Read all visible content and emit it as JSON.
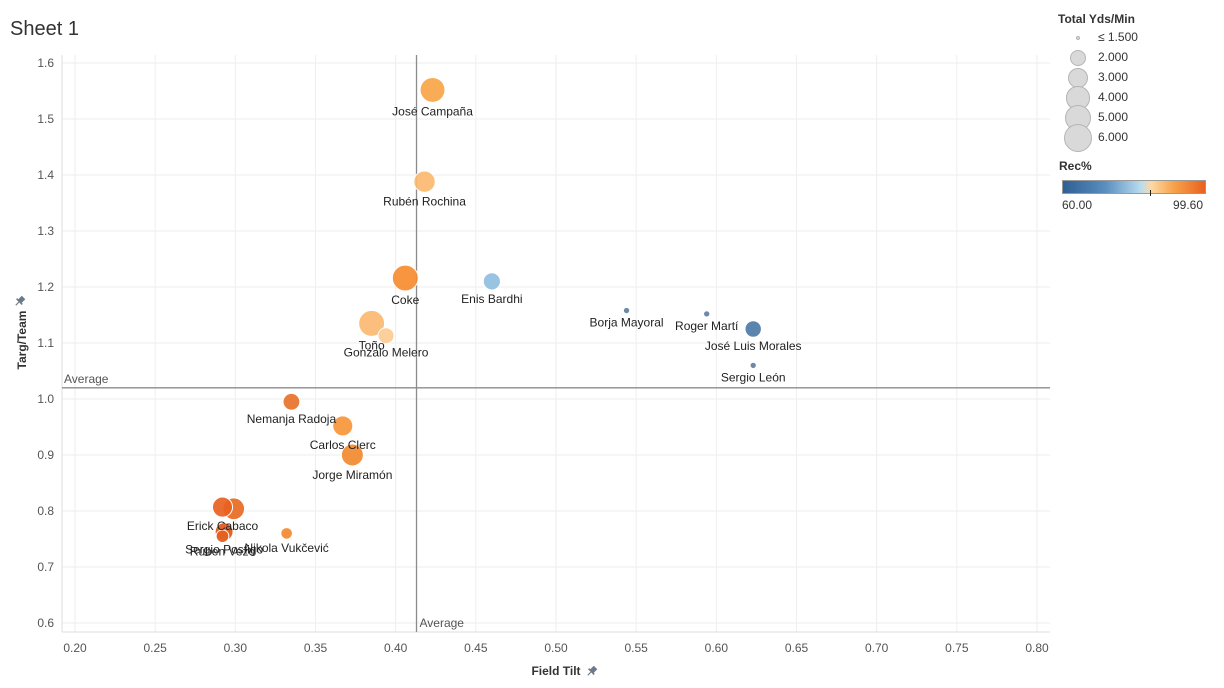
{
  "sheet": {
    "title": "Sheet 1"
  },
  "legend": {
    "size_title": "Total Yds/Min",
    "size_items": [
      {
        "label": "≤ 1.500",
        "value": 1.5
      },
      {
        "label": "2.000",
        "value": 2.0
      },
      {
        "label": "3.000",
        "value": 3.0
      },
      {
        "label": "4.000",
        "value": 4.0
      },
      {
        "label": "5.000",
        "value": 5.0
      },
      {
        "label": "6.000",
        "value": 6.0
      }
    ],
    "color_title": "Rec%",
    "color_min": "60.00",
    "color_max": "99.60",
    "colors": {
      "low": "#2f5f93",
      "mid": "#b9dcee",
      "high": "#e8611f"
    }
  },
  "chart_data": {
    "type": "scatter",
    "xlabel": "Field Tilt",
    "ylabel": "Targ/Team",
    "xlim": [
      0.2,
      0.8
    ],
    "ylim": [
      0.6,
      1.6
    ],
    "x_ticks": [
      "0.20",
      "0.25",
      "0.30",
      "0.35",
      "0.40",
      "0.45",
      "0.50",
      "0.55",
      "0.60",
      "0.65",
      "0.70",
      "0.75",
      "0.80"
    ],
    "y_ticks": [
      "0.6",
      "0.7",
      "0.8",
      "0.9",
      "1.0",
      "1.1",
      "1.2",
      "1.3",
      "1.4",
      "1.5",
      "1.6"
    ],
    "grid": true,
    "reference_lines": [
      {
        "axis": "x",
        "value": 0.413,
        "label": "Average"
      },
      {
        "axis": "y",
        "value": 1.02,
        "label": "Average"
      }
    ],
    "points": [
      {
        "name": "José Campaña",
        "x": 0.423,
        "y": 1.552,
        "size": 4.6,
        "color": "#f9a548"
      },
      {
        "name": "Rubén Rochina",
        "x": 0.418,
        "y": 1.388,
        "size": 3.4,
        "color": "#fbb870"
      },
      {
        "name": "Coke",
        "x": 0.406,
        "y": 1.216,
        "size": 5.0,
        "color": "#f68c30"
      },
      {
        "name": "Enis Bardhi",
        "x": 0.46,
        "y": 1.21,
        "size": 2.2,
        "color": "#8fbfe0"
      },
      {
        "name": "Toño",
        "x": 0.385,
        "y": 1.135,
        "size": 5.0,
        "color": "#fbb971"
      },
      {
        "name": "Gonzalo Melero",
        "x": 0.394,
        "y": 1.113,
        "size": 1.9,
        "color": "#fccb93"
      },
      {
        "name": "Borja Mayoral",
        "x": 0.544,
        "y": 1.158,
        "size": 0.3,
        "color": "#5f7f9f"
      },
      {
        "name": "Roger Martí",
        "x": 0.594,
        "y": 1.152,
        "size": 0.3,
        "color": "#5f7f9f"
      },
      {
        "name": "José Luis Morales",
        "x": 0.623,
        "y": 1.125,
        "size": 2.0,
        "color": "#4d7ba8"
      },
      {
        "name": "Sergio León",
        "x": 0.623,
        "y": 1.06,
        "size": 0.3,
        "color": "#5f7f9f"
      },
      {
        "name": "Nemanja Radoja",
        "x": 0.335,
        "y": 0.995,
        "size": 2.1,
        "color": "#e8722a"
      },
      {
        "name": "Carlos Clerc",
        "x": 0.367,
        "y": 0.952,
        "size": 3.0,
        "color": "#f7963a"
      },
      {
        "name": "Jorge Miramón",
        "x": 0.373,
        "y": 0.9,
        "size": 3.6,
        "color": "#f28a30"
      },
      {
        "name": "Erick Cabaco",
        "x": 0.292,
        "y": 0.807,
        "size": 3.0,
        "color": "#e8611f"
      },
      {
        "name": "",
        "x": 0.299,
        "y": 0.804,
        "size": 3.5,
        "color": "#e86a22"
      },
      {
        "name": "Sergio Postigo",
        "x": 0.293,
        "y": 0.763,
        "size": 2.4,
        "color": "#e0571a"
      },
      {
        "name": "Rúben Vezo",
        "x": 0.292,
        "y": 0.755,
        "size": 1.2,
        "color": "#e65f1f"
      },
      {
        "name": "Nikola Vukčević",
        "x": 0.332,
        "y": 0.76,
        "size": 1.0,
        "color": "#f28a30"
      }
    ]
  }
}
